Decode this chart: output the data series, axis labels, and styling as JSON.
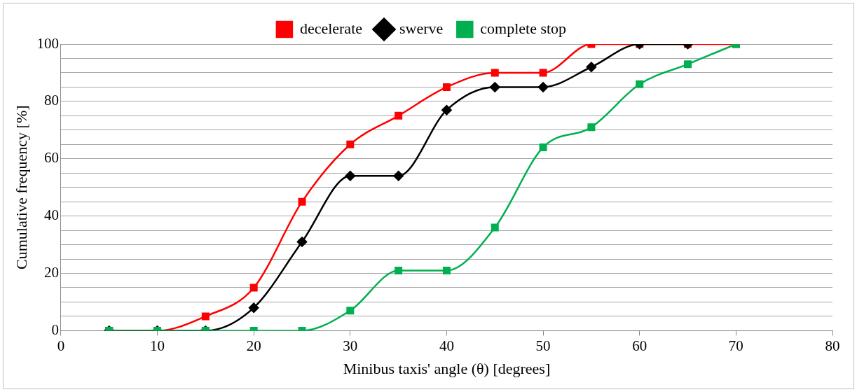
{
  "chart_data": {
    "type": "line",
    "xlabel": "Minibus taxis' angle (θ) [degrees]",
    "ylabel": "Cumulative frequency [%]",
    "series": [
      {
        "name": "decelerate",
        "color": "#ff0000",
        "marker": "square",
        "x": [
          5,
          10,
          15,
          20,
          25,
          30,
          35,
          40,
          45,
          50,
          55,
          60,
          65,
          70
        ],
        "values": [
          0,
          0,
          5,
          15,
          45,
          65,
          75,
          85,
          90,
          90,
          100,
          100,
          100,
          100
        ]
      },
      {
        "name": "swerve",
        "color": "#000000",
        "marker": "diamond",
        "x": [
          5,
          10,
          15,
          20,
          25,
          30,
          35,
          40,
          45,
          50,
          55,
          60,
          65
        ],
        "values": [
          0,
          0,
          0,
          8,
          31,
          54,
          54,
          77,
          85,
          85,
          92,
          100,
          100
        ]
      },
      {
        "name": "complete stop",
        "color": "#00b050",
        "marker": "square",
        "x": [
          5,
          10,
          15,
          20,
          25,
          30,
          35,
          40,
          45,
          50,
          55,
          60,
          65,
          70
        ],
        "values": [
          0,
          0,
          0,
          0,
          0,
          7,
          21,
          21,
          36,
          64,
          71,
          86,
          93,
          100
        ]
      }
    ],
    "xlim": [
      0,
      80
    ],
    "xticks": [
      0,
      10,
      20,
      30,
      40,
      50,
      60,
      70,
      80
    ],
    "ylim": [
      0,
      100
    ],
    "yticks": [
      0,
      {
        "value": 5,
        "label": null
      },
      {
        "value": 10,
        "label": null
      },
      {
        "value": 15,
        "label": null
      },
      20,
      {
        "value": 25,
        "label": null
      },
      {
        "value": 30,
        "label": null
      },
      {
        "value": 35,
        "label": null
      },
      40,
      {
        "value": 45,
        "label": null
      },
      {
        "value": 50,
        "label": null
      },
      {
        "value": 55,
        "label": null
      },
      60,
      {
        "value": 65,
        "label": null
      },
      {
        "value": 70,
        "label": null
      },
      {
        "value": 75,
        "label": null
      },
      80,
      {
        "value": 85,
        "label": null
      },
      {
        "value": 90,
        "label": null
      },
      {
        "value": 95,
        "label": null
      },
      100
    ],
    "grid": "y",
    "legend": "top"
  }
}
